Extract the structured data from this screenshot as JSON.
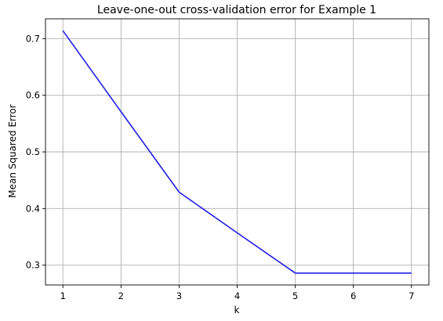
{
  "chart_data": {
    "type": "line",
    "title": "Leave-one-out cross-validation error for Example 1",
    "xlabel": "k",
    "ylabel": "Mean Squared Error",
    "xlim": [
      0.7,
      7.3
    ],
    "ylim": [
      0.265,
      0.735
    ],
    "xticks": [
      1,
      2,
      3,
      4,
      5,
      6,
      7
    ],
    "yticks": [
      0.3,
      0.4,
      0.5,
      0.6,
      0.7
    ],
    "ytick_labels": [
      "0.3",
      "0.4",
      "0.5",
      "0.6",
      "0.7"
    ],
    "grid": true,
    "series": [
      {
        "color": "#1f1fe6",
        "x": [
          1,
          2,
          3,
          4,
          5,
          6,
          7
        ],
        "y": [
          0.714,
          0.571,
          0.429,
          0.357,
          0.286,
          0.286,
          0.286
        ]
      }
    ]
  }
}
